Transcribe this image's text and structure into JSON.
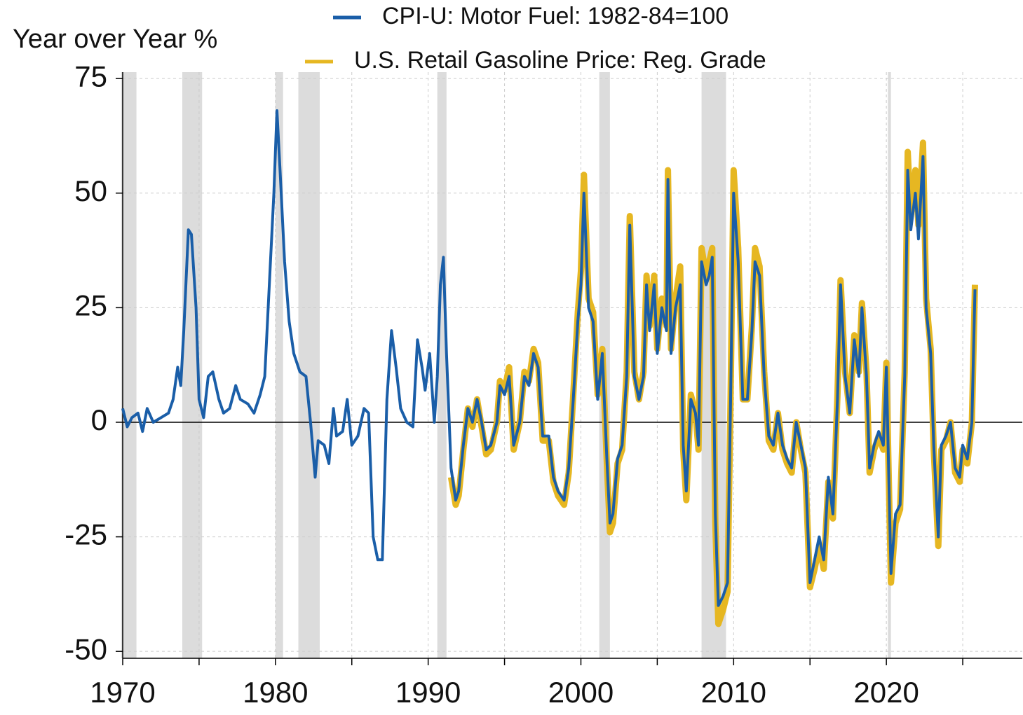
{
  "chart_data": {
    "type": "line",
    "y_axis_label": "Year over Year %",
    "xlim": [
      1970,
      2028.9
    ],
    "ylim": [
      -51.5,
      76.4
    ],
    "xticks": [
      1970,
      1980,
      1990,
      2000,
      2010,
      2020
    ],
    "x_minor_ticks": [
      1975,
      1985,
      1995,
      2005,
      2015,
      2025
    ],
    "yticks": [
      75,
      50,
      25,
      0,
      -25,
      -50
    ],
    "grid": true,
    "shaded_periods": [
      [
        1969.9,
        1970.9
      ],
      [
        1973.9,
        1975.2
      ],
      [
        1980.0,
        1980.5
      ],
      [
        1981.5,
        1982.9
      ],
      [
        1990.6,
        1991.2
      ],
      [
        2001.2,
        2001.9
      ],
      [
        2007.9,
        2009.5
      ],
      [
        2020.1,
        2020.3
      ]
    ],
    "shade_color": "#dcdcdc",
    "series": [
      {
        "name": "U.S. Retail Gasoline Price: Reg. Grade",
        "color": "#e6b722",
        "x": [
          1991.5,
          1991.8,
          1992.0,
          1992.3,
          1992.6,
          1992.9,
          1993.2,
          1993.5,
          1993.8,
          1994.1,
          1994.5,
          1994.7,
          1995.0,
          1995.3,
          1995.6,
          1996.0,
          1996.3,
          1996.6,
          1996.9,
          1997.2,
          1997.5,
          1997.9,
          1998.2,
          1998.5,
          1998.9,
          1999.2,
          1999.5,
          1999.8,
          2000.0,
          2000.2,
          2000.5,
          2000.8,
          2001.1,
          2001.4,
          2001.7,
          2001.9,
          2002.1,
          2002.4,
          2002.7,
          2003.0,
          2003.2,
          2003.5,
          2003.8,
          2004.1,
          2004.3,
          2004.5,
          2004.8,
          2005.0,
          2005.3,
          2005.6,
          2005.7,
          2005.9,
          2006.2,
          2006.5,
          2006.7,
          2006.9,
          2007.2,
          2007.5,
          2007.7,
          2007.9,
          2008.2,
          2008.4,
          2008.6,
          2008.8,
          2009.0,
          2009.3,
          2009.6,
          2009.8,
          2010.0,
          2010.3,
          2010.6,
          2010.9,
          2011.2,
          2011.4,
          2011.7,
          2012.0,
          2012.3,
          2012.6,
          2012.9,
          2013.2,
          2013.5,
          2013.8,
          2014.1,
          2014.4,
          2014.7,
          2015.0,
          2015.3,
          2015.6,
          2015.9,
          2016.2,
          2016.5,
          2016.8,
          2017.0,
          2017.3,
          2017.6,
          2017.9,
          2018.2,
          2018.4,
          2018.7,
          2018.9,
          2019.2,
          2019.5,
          2019.8,
          2020.0,
          2020.3,
          2020.6,
          2020.9,
          2021.2,
          2021.4,
          2021.6,
          2021.9,
          2022.1,
          2022.4,
          2022.6,
          2022.9,
          2023.1,
          2023.4,
          2023.6,
          2023.9,
          2024.2,
          2024.5,
          2024.8,
          2025.0,
          2025.3,
          2025.6,
          2025.8
        ],
        "values": [
          -12,
          -18,
          -16,
          -6,
          3,
          -1,
          5,
          -1,
          -7,
          -6,
          0,
          9,
          7,
          12,
          -6,
          0,
          11,
          9,
          16,
          13,
          -4,
          -4,
          -13,
          -16,
          -18,
          -11,
          6,
          24,
          33,
          54,
          27,
          24,
          6,
          16,
          -9,
          -24,
          -22,
          -9,
          -6,
          11,
          45,
          11,
          5,
          11,
          32,
          21,
          32,
          16,
          27,
          21,
          55,
          16,
          27,
          34,
          -6,
          -17,
          6,
          2,
          -6,
          38,
          32,
          35,
          38,
          -22,
          -44,
          -41,
          -37,
          6,
          55,
          38,
          5,
          5,
          21,
          38,
          34,
          11,
          -4,
          -6,
          2,
          -6,
          -9,
          -11,
          0,
          -6,
          -11,
          -36,
          -32,
          -27,
          -32,
          -13,
          -21,
          6,
          31,
          11,
          2,
          19,
          11,
          26,
          11,
          -11,
          -6,
          -3,
          -6,
          13,
          -35,
          -22,
          -19,
          11,
          59,
          45,
          55,
          43,
          61,
          27,
          16,
          -6,
          -27,
          -6,
          -4,
          0,
          -11,
          -13,
          -6,
          -9,
          0,
          30
        ]
      },
      {
        "name": "CPI-U: Motor Fuel: 1982-84=100",
        "color": "#1a5ea8",
        "x": [
          1970.0,
          1970.3,
          1970.6,
          1971.0,
          1971.3,
          1971.6,
          1972.0,
          1972.5,
          1973.0,
          1973.3,
          1973.6,
          1973.8,
          1974.0,
          1974.3,
          1974.5,
          1974.8,
          1975.0,
          1975.3,
          1975.6,
          1975.9,
          1976.3,
          1976.6,
          1977.0,
          1977.4,
          1977.7,
          1978.2,
          1978.6,
          1979.0,
          1979.3,
          1979.6,
          1979.9,
          1980.1,
          1980.3,
          1980.6,
          1980.9,
          1981.2,
          1981.6,
          1982.0,
          1982.3,
          1982.6,
          1982.8,
          1983.2,
          1983.5,
          1983.8,
          1984.0,
          1984.4,
          1984.7,
          1985.0,
          1985.4,
          1985.8,
          1986.1,
          1986.4,
          1986.7,
          1987.0,
          1987.3,
          1987.6,
          1987.9,
          1988.2,
          1988.6,
          1989.0,
          1989.3,
          1989.6,
          1989.8,
          1990.1,
          1990.4,
          1990.6,
          1990.8,
          1991.0,
          1991.2,
          1991.5,
          1991.8,
          1992.0,
          1992.3,
          1992.6,
          1992.9,
          1993.2,
          1993.5,
          1993.8,
          1994.1,
          1994.5,
          1994.7,
          1995.0,
          1995.3,
          1995.6,
          1996.0,
          1996.3,
          1996.6,
          1996.9,
          1997.2,
          1997.5,
          1997.9,
          1998.2,
          1998.5,
          1998.9,
          1999.2,
          1999.5,
          1999.8,
          2000.0,
          2000.2,
          2000.5,
          2000.8,
          2001.1,
          2001.4,
          2001.7,
          2001.9,
          2002.1,
          2002.4,
          2002.7,
          2003.0,
          2003.2,
          2003.5,
          2003.8,
          2004.1,
          2004.3,
          2004.5,
          2004.8,
          2005.0,
          2005.3,
          2005.6,
          2005.7,
          2005.9,
          2006.2,
          2006.5,
          2006.7,
          2006.9,
          2007.2,
          2007.5,
          2007.7,
          2007.9,
          2008.2,
          2008.4,
          2008.6,
          2008.8,
          2009.0,
          2009.3,
          2009.6,
          2009.8,
          2010.0,
          2010.3,
          2010.6,
          2010.9,
          2011.2,
          2011.4,
          2011.7,
          2012.0,
          2012.3,
          2012.6,
          2012.9,
          2013.2,
          2013.5,
          2013.8,
          2014.1,
          2014.4,
          2014.7,
          2015.0,
          2015.3,
          2015.6,
          2015.9,
          2016.2,
          2016.5,
          2016.8,
          2017.0,
          2017.3,
          2017.6,
          2017.9,
          2018.2,
          2018.4,
          2018.7,
          2018.9,
          2019.2,
          2019.5,
          2019.8,
          2020.0,
          2020.3,
          2020.6,
          2020.9,
          2021.2,
          2021.4,
          2021.6,
          2021.9,
          2022.1,
          2022.4,
          2022.6,
          2022.9,
          2023.1,
          2023.4,
          2023.6,
          2023.9,
          2024.2,
          2024.5,
          2024.8,
          2025.0,
          2025.3,
          2025.6,
          2025.8
        ],
        "values": [
          3,
          -1,
          1,
          2,
          -2,
          3,
          0,
          1,
          2,
          5,
          12,
          8,
          20,
          42,
          41,
          25,
          5,
          1,
          10,
          11,
          5,
          2,
          3,
          8,
          5,
          4,
          2,
          6,
          10,
          30,
          50,
          68,
          55,
          35,
          22,
          15,
          11,
          10,
          0,
          -12,
          -4,
          -5,
          -9,
          3,
          -3,
          -2,
          5,
          -5,
          -3,
          3,
          2,
          -25,
          -30,
          -30,
          5,
          20,
          12,
          3,
          0,
          -1,
          18,
          12,
          7,
          15,
          0,
          10,
          30,
          36,
          15,
          -10,
          -17,
          -15,
          -5,
          3,
          0,
          5,
          0,
          -6,
          -5,
          0,
          8,
          6,
          10,
          -5,
          0,
          10,
          8,
          15,
          12,
          -3,
          -3,
          -12,
          -15,
          -17,
          -10,
          5,
          22,
          30,
          50,
          25,
          22,
          5,
          15,
          -8,
          -22,
          -20,
          -8,
          -5,
          10,
          43,
          10,
          5,
          10,
          30,
          20,
          30,
          15,
          25,
          20,
          53,
          15,
          25,
          30,
          -5,
          -15,
          5,
          2,
          -5,
          35,
          30,
          32,
          36,
          -20,
          -40,
          -38,
          -35,
          5,
          50,
          35,
          5,
          5,
          20,
          35,
          32,
          10,
          -3,
          -5,
          2,
          -5,
          -8,
          -10,
          0,
          -5,
          -10,
          -35,
          -30,
          -25,
          -30,
          -12,
          -20,
          5,
          30,
          10,
          2,
          18,
          10,
          25,
          10,
          -10,
          -5,
          -2,
          -5,
          12,
          -33,
          -20,
          -18,
          10,
          55,
          42,
          50,
          40,
          58,
          25,
          15,
          -5,
          -25,
          -5,
          -3,
          0,
          -10,
          -12,
          -5,
          -8,
          0,
          29
        ]
      }
    ]
  }
}
